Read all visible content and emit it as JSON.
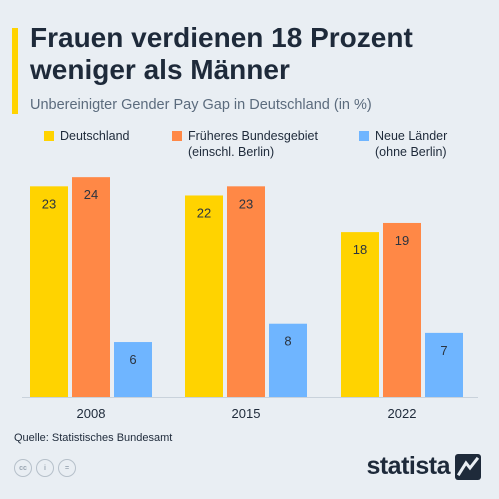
{
  "header": {
    "title": "Frauen verdienen 18 Prozent weniger als Männer",
    "subtitle": "Unbereinigter Gender Pay Gap in Deutschland (in %)"
  },
  "legend": [
    {
      "label": "Deutschland",
      "color": "#ffd300"
    },
    {
      "label": "Früheres Bundesgebiet\n(einschl. Berlin)",
      "color": "#ff8846"
    },
    {
      "label": "Neue Länder\n(ohne Berlin)",
      "color": "#6fb5ff"
    }
  ],
  "chart_data": {
    "type": "bar",
    "title": "Frauen verdienen 18 Prozent weniger als Männer",
    "subtitle": "Unbereinigter Gender Pay Gap in Deutschland (in %)",
    "categories": [
      "2008",
      "2015",
      "2022"
    ],
    "series": [
      {
        "name": "Deutschland",
        "color": "#ffd300",
        "values": [
          23,
          22,
          18
        ]
      },
      {
        "name": "Früheres Bundesgebiet (einschl. Berlin)",
        "color": "#ff8846",
        "values": [
          24,
          23,
          19
        ]
      },
      {
        "name": "Neue Länder (ohne Berlin)",
        "color": "#6fb5ff",
        "values": [
          6,
          8,
          7
        ]
      }
    ],
    "ylim": [
      0,
      25
    ],
    "grid": false,
    "legend_position": "top",
    "data_labels": true
  },
  "footer": {
    "source": "Quelle: Statistisches Bundesamt",
    "brand": "statista",
    "license_icons": [
      "cc-icon",
      "by-icon",
      "nd-icon"
    ],
    "license_texts": [
      "cc",
      "i",
      "="
    ]
  }
}
